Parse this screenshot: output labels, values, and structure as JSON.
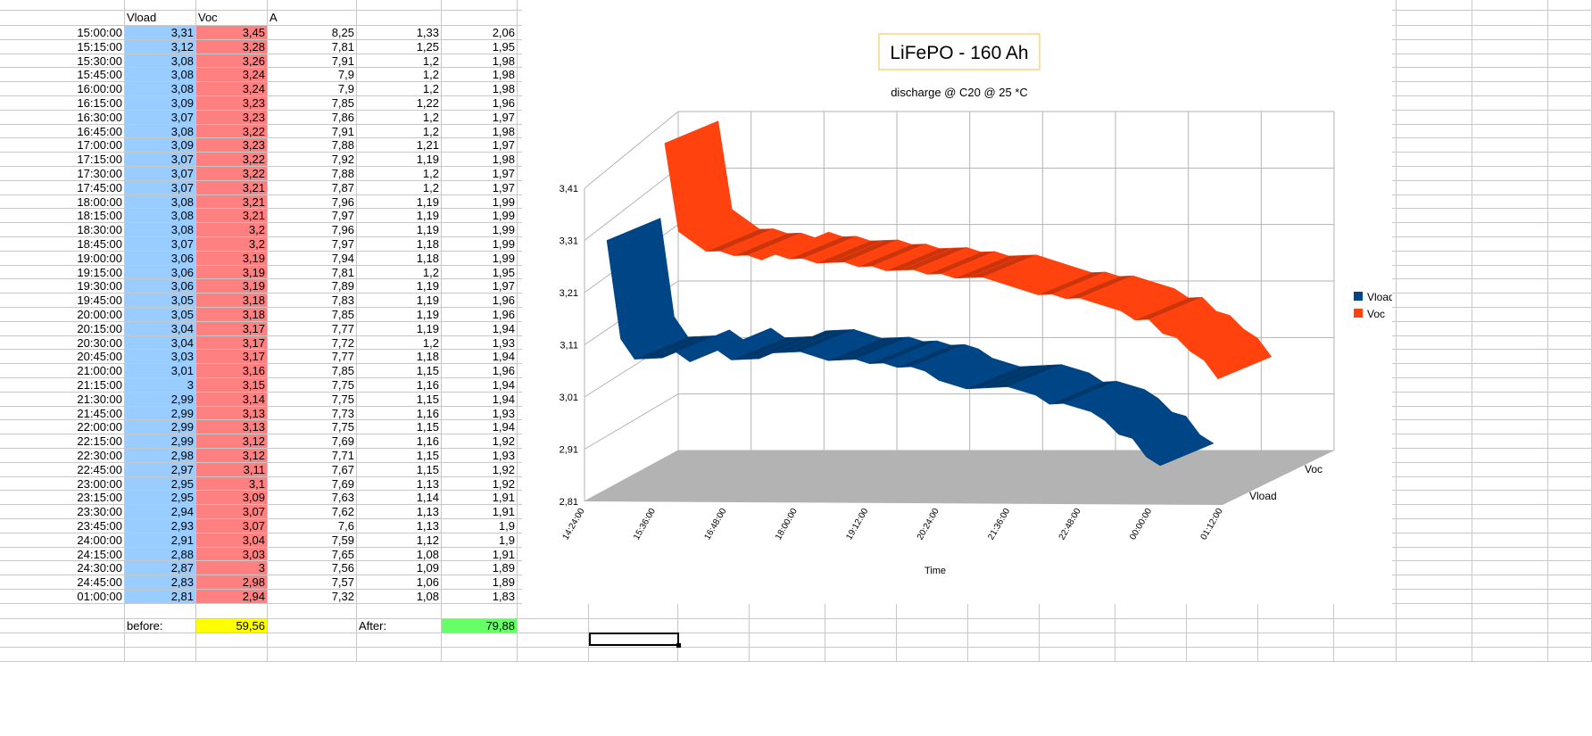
{
  "sheet": {
    "headers": [
      "",
      "Vload",
      "Voc",
      "A",
      "",
      ""
    ],
    "rows": [
      [
        "15:00:00",
        "3,31",
        "3,45",
        "8,25",
        "1,33",
        "2,06"
      ],
      [
        "15:15:00",
        "3,12",
        "3,28",
        "7,81",
        "1,25",
        "1,95"
      ],
      [
        "15:30:00",
        "3,08",
        "3,26",
        "7,91",
        "1,2",
        "1,98"
      ],
      [
        "15:45:00",
        "3,08",
        "3,24",
        "7,9",
        "1,2",
        "1,98"
      ],
      [
        "16:00:00",
        "3,08",
        "3,24",
        "7,9",
        "1,2",
        "1,98"
      ],
      [
        "16:15:00",
        "3,09",
        "3,23",
        "7,85",
        "1,22",
        "1,96"
      ],
      [
        "16:30:00",
        "3,07",
        "3,23",
        "7,86",
        "1,2",
        "1,97"
      ],
      [
        "16:45:00",
        "3,08",
        "3,22",
        "7,91",
        "1,2",
        "1,98"
      ],
      [
        "17:00:00",
        "3,09",
        "3,23",
        "7,88",
        "1,21",
        "1,97"
      ],
      [
        "17:15:00",
        "3,07",
        "3,22",
        "7,92",
        "1,19",
        "1,98"
      ],
      [
        "17:30:00",
        "3,07",
        "3,22",
        "7,88",
        "1,2",
        "1,97"
      ],
      [
        "17:45:00",
        "3,07",
        "3,21",
        "7,87",
        "1,2",
        "1,97"
      ],
      [
        "18:00:00",
        "3,08",
        "3,21",
        "7,96",
        "1,19",
        "1,99"
      ],
      [
        "18:15:00",
        "3,08",
        "3,21",
        "7,97",
        "1,19",
        "1,99"
      ],
      [
        "18:30:00",
        "3,08",
        "3,2",
        "7,96",
        "1,19",
        "1,99"
      ],
      [
        "18:45:00",
        "3,07",
        "3,2",
        "7,97",
        "1,18",
        "1,99"
      ],
      [
        "19:00:00",
        "3,06",
        "3,19",
        "7,94",
        "1,18",
        "1,99"
      ],
      [
        "19:15:00",
        "3,06",
        "3,19",
        "7,81",
        "1,2",
        "1,95"
      ],
      [
        "19:30:00",
        "3,06",
        "3,19",
        "7,89",
        "1,19",
        "1,97"
      ],
      [
        "19:45:00",
        "3,05",
        "3,18",
        "7,83",
        "1,19",
        "1,96"
      ],
      [
        "20:00:00",
        "3,05",
        "3,18",
        "7,85",
        "1,19",
        "1,96"
      ],
      [
        "20:15:00",
        "3,04",
        "3,17",
        "7,77",
        "1,19",
        "1,94"
      ],
      [
        "20:30:00",
        "3,04",
        "3,17",
        "7,72",
        "1,2",
        "1,93"
      ],
      [
        "20:45:00",
        "3,03",
        "3,17",
        "7,77",
        "1,18",
        "1,94"
      ],
      [
        "21:00:00",
        "3,01",
        "3,16",
        "7,85",
        "1,15",
        "1,96"
      ],
      [
        "21:15:00",
        "3",
        "3,15",
        "7,75",
        "1,16",
        "1,94"
      ],
      [
        "21:30:00",
        "2,99",
        "3,14",
        "7,75",
        "1,15",
        "1,94"
      ],
      [
        "21:45:00",
        "2,99",
        "3,13",
        "7,73",
        "1,16",
        "1,93"
      ],
      [
        "22:00:00",
        "2,99",
        "3,13",
        "7,75",
        "1,15",
        "1,94"
      ],
      [
        "22:15:00",
        "2,99",
        "3,12",
        "7,69",
        "1,16",
        "1,92"
      ],
      [
        "22:30:00",
        "2,98",
        "3,12",
        "7,71",
        "1,15",
        "1,93"
      ],
      [
        "22:45:00",
        "2,97",
        "3,11",
        "7,67",
        "1,15",
        "1,92"
      ],
      [
        "23:00:00",
        "2,95",
        "3,1",
        "7,69",
        "1,13",
        "1,92"
      ],
      [
        "23:15:00",
        "2,95",
        "3,09",
        "7,63",
        "1,14",
        "1,91"
      ],
      [
        "23:30:00",
        "2,94",
        "3,07",
        "7,62",
        "1,13",
        "1,91"
      ],
      [
        "23:45:00",
        "2,93",
        "3,07",
        "7,6",
        "1,13",
        "1,9"
      ],
      [
        "24:00:00",
        "2,91",
        "3,04",
        "7,59",
        "1,12",
        "1,9"
      ],
      [
        "24:15:00",
        "2,88",
        "3,03",
        "7,65",
        "1,08",
        "1,91"
      ],
      [
        "24:30:00",
        "2,87",
        "3",
        "7,56",
        "1,09",
        "1,89"
      ],
      [
        "24:45:00",
        "2,83",
        "2,98",
        "7,57",
        "1,06",
        "1,89"
      ],
      [
        "01:00:00",
        "2,81",
        "2,94",
        "7,32",
        "1,08",
        "1,83"
      ]
    ],
    "summary": {
      "before_label": "before:",
      "before_value": "59,56",
      "after_label": "After:",
      "after_value": "79,88"
    }
  },
  "colors": {
    "vload": "#004586",
    "voc": "#ff420e",
    "vload_cell": "#99ccff",
    "voc_cell": "#ff8080"
  },
  "chart_data": {
    "type": "line",
    "style": "3d-ribbon",
    "title": "LiFePO - 160 Ah",
    "subtitle": "discharge  @ C20 @ 25 *C",
    "xlabel": "Time",
    "ylabel": "",
    "ylim": [
      2.81,
      3.41
    ],
    "yticks": [
      "2,81",
      "2,91",
      "3,01",
      "3,11",
      "3,21",
      "3,31",
      "3,41"
    ],
    "xticks": [
      "14:24:00",
      "15:36:00",
      "16:48:00",
      "18:00:00",
      "19:12:00",
      "20:24:00",
      "21:36:00",
      "22:48:00",
      "00:00:00",
      "01:12:00"
    ],
    "depth_labels": [
      "Vload",
      "Voc"
    ],
    "legend": {
      "position": "right",
      "entries": [
        "Vload",
        "Voc"
      ]
    },
    "series": [
      {
        "name": "Vload",
        "values": [
          3.31,
          3.12,
          3.08,
          3.08,
          3.08,
          3.09,
          3.07,
          3.08,
          3.09,
          3.07,
          3.07,
          3.07,
          3.08,
          3.08,
          3.08,
          3.07,
          3.06,
          3.06,
          3.06,
          3.05,
          3.05,
          3.04,
          3.04,
          3.03,
          3.01,
          3.0,
          2.99,
          2.99,
          2.99,
          2.99,
          2.98,
          2.97,
          2.95,
          2.95,
          2.94,
          2.93,
          2.91,
          2.88,
          2.87,
          2.83,
          2.81
        ]
      },
      {
        "name": "Voc",
        "values": [
          3.45,
          3.28,
          3.26,
          3.24,
          3.24,
          3.23,
          3.23,
          3.22,
          3.23,
          3.22,
          3.22,
          3.21,
          3.21,
          3.21,
          3.2,
          3.2,
          3.19,
          3.19,
          3.19,
          3.18,
          3.18,
          3.17,
          3.17,
          3.17,
          3.16,
          3.15,
          3.14,
          3.13,
          3.13,
          3.12,
          3.12,
          3.11,
          3.1,
          3.09,
          3.07,
          3.07,
          3.04,
          3.03,
          3.0,
          2.98,
          2.94
        ]
      }
    ]
  }
}
